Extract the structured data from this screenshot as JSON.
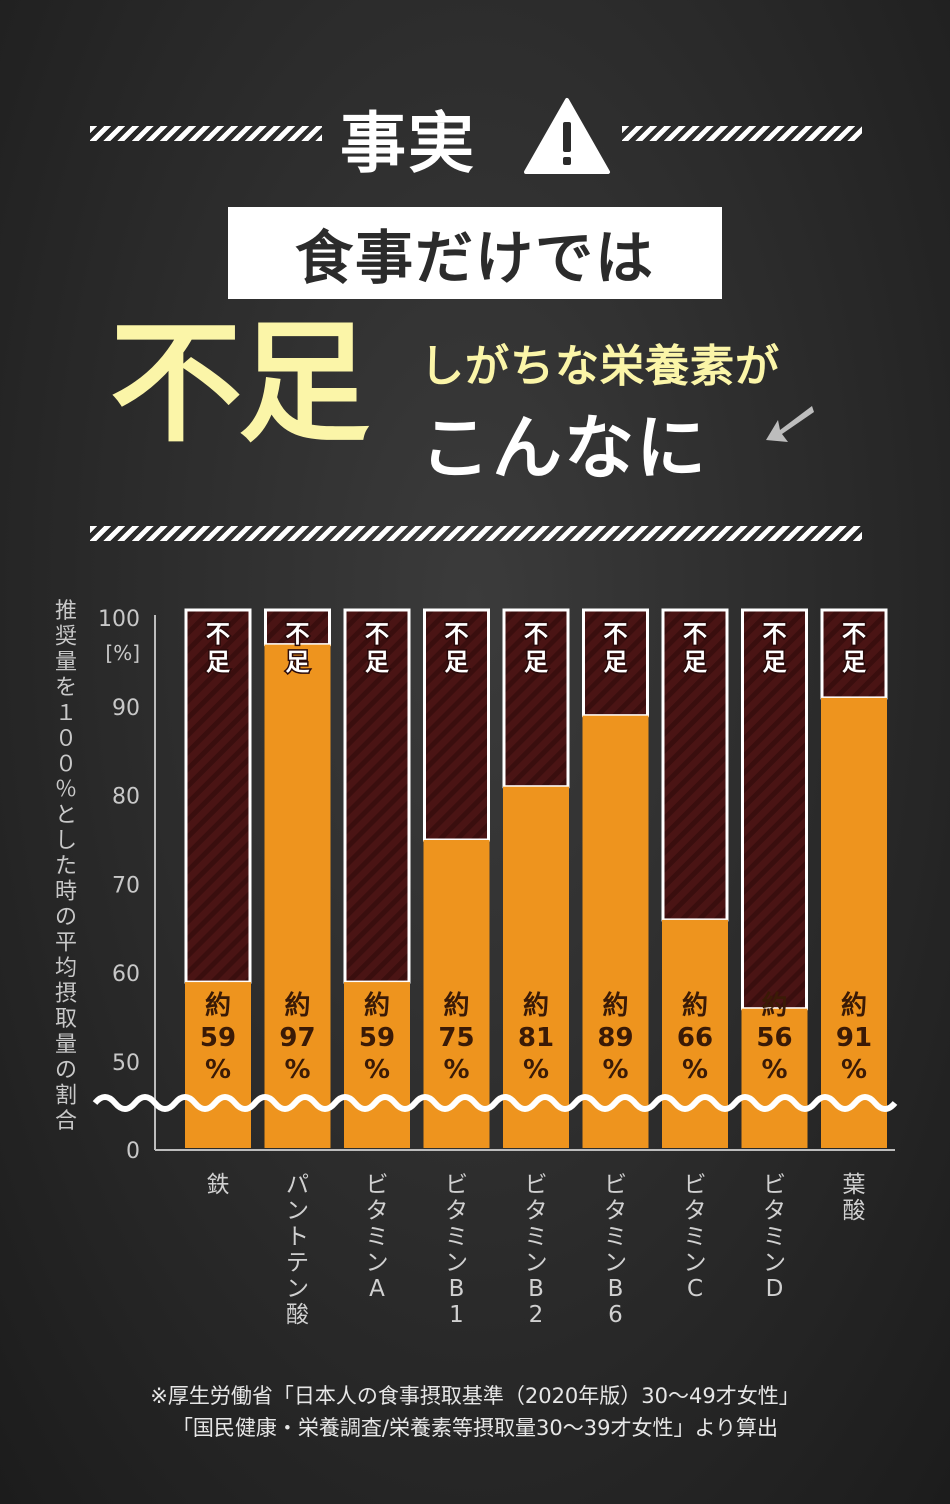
{
  "header": {
    "title": "事実",
    "box_text": "食事だけでは",
    "big_word": "不足",
    "line_top": "しがちな栄養素が",
    "line_bottom": "こんなに"
  },
  "colors": {
    "intake": "#ee941e",
    "shortfall": "#4a1414",
    "accent_yellow": "#fbf5a8"
  },
  "icons": {
    "warning": "warning-triangle-icon",
    "arrow": "down-left-arrow-icon"
  },
  "chart_data": {
    "type": "bar",
    "ylabel": "推奨量を１００％とした時の平均摂取量の割合",
    "yunit": "[%]",
    "yticks": [
      "100",
      "90",
      "80",
      "70",
      "60",
      "50",
      "0"
    ],
    "axis_break": true,
    "shortfall_label": "不足",
    "categories": [
      "鉄",
      "パントテン酸",
      "ビタミンA",
      "ビタミンB1",
      "ビタミンB2",
      "ビタミンB6",
      "ビタミンC",
      "ビタミンD",
      "葉酸"
    ],
    "value_labels": [
      "約\n59\n%",
      "約\n97\n%",
      "約\n59\n%",
      "約\n75\n%",
      "約\n81\n%",
      "約\n89\n%",
      "約\n66\n%",
      "約\n56\n%",
      "約\n91\n%"
    ],
    "values": [
      59,
      97,
      59,
      75,
      81,
      89,
      66,
      56,
      91
    ]
  },
  "footnote": {
    "line1": "※厚生労働省「日本人の食事摂取基準（2020年版）30〜49才女性」",
    "line2": "「国民健康・栄養調査/栄養素等摂取量30〜39才女性」より算出"
  }
}
